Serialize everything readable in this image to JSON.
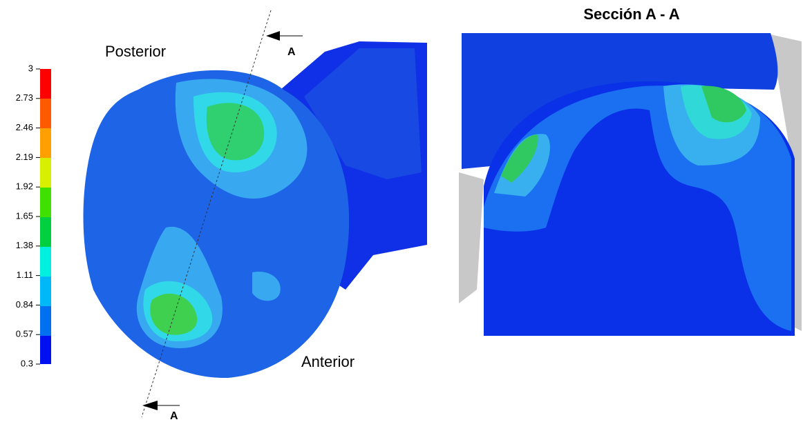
{
  "title": "Sección A - A",
  "labels": {
    "posterior": "Posterior",
    "anterior": "Anterior",
    "section_top": "A",
    "section_bottom": "A"
  },
  "colorbar": {
    "ticks": [
      3,
      2.73,
      2.46,
      2.19,
      1.92,
      1.65,
      1.38,
      1.11,
      0.84,
      0.57,
      0.3
    ]
  }
}
